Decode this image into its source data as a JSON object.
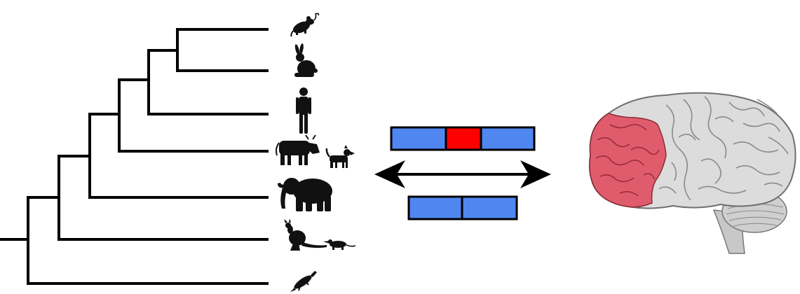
{
  "colors": {
    "line": "#000000",
    "silhouette": "#111111",
    "gene_block": "#4f86f0",
    "insertion": "#ff0000",
    "brain_cortex": "#dcdcdc",
    "brain_frontal": "#e05c6c",
    "cerebellum": "#cfcfcf"
  },
  "tree": {
    "leaves": [
      {
        "id": "mouse",
        "icons": [
          "mouse-icon"
        ]
      },
      {
        "id": "rabbit",
        "icons": [
          "rabbit-icon"
        ]
      },
      {
        "id": "human",
        "icons": [
          "human-icon"
        ]
      },
      {
        "id": "laurasiatheria",
        "icons": [
          "cow-icon",
          "dog-icon"
        ]
      },
      {
        "id": "elephant",
        "icons": [
          "elephant-icon"
        ]
      },
      {
        "id": "marsupials",
        "icons": [
          "kangaroo-icon",
          "opossum-icon"
        ]
      },
      {
        "id": "platypus",
        "icons": [
          "platypus-icon"
        ]
      }
    ]
  },
  "genes": {
    "with_insertion": [
      "blue",
      "red",
      "blue"
    ],
    "without_insertion": [
      "blue",
      "blue"
    ]
  },
  "brain": {
    "highlighted_region": "frontal-lobe"
  },
  "arrow": {
    "direction": "double-headed"
  }
}
